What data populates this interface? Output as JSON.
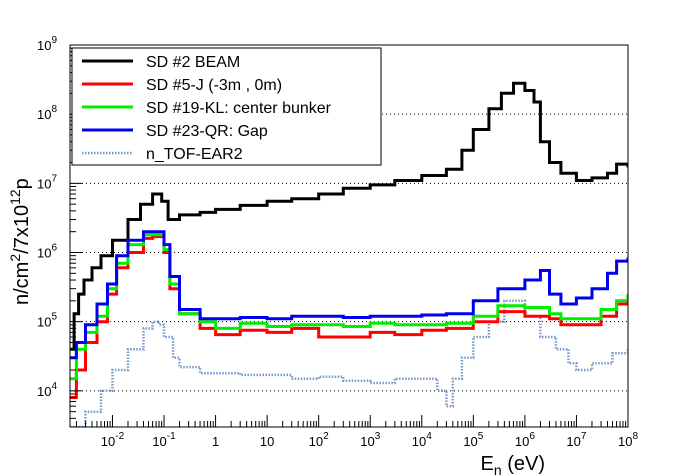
{
  "chart_data": {
    "type": "line",
    "title": "",
    "xlabel": "E_n (eV)",
    "xlabel_parts": {
      "base": "E",
      "sub": "n",
      "unit": " (eV)"
    },
    "ylabel": "n/cm^2/7x10^12p",
    "ylabel_parts": {
      "a": "n/cm",
      "sup1": "2",
      "b": "/7x10",
      "sup2": "12",
      "c": "p"
    },
    "x_scale": "log",
    "y_scale": "log",
    "xlim": [
      0.0015,
      100000000
    ],
    "ylim": [
      3000,
      1000000000
    ],
    "grid": "horizontal dotted at decades",
    "legend_position": "top-left",
    "x_ticks": [
      {
        "mantissa": "10",
        "exp": "-2",
        "value": 0.01
      },
      {
        "mantissa": "10",
        "exp": "-1",
        "value": 0.1
      },
      {
        "mantissa": "1",
        "exp": "",
        "value": 1
      },
      {
        "mantissa": "10",
        "exp": "",
        "value": 10
      },
      {
        "mantissa": "10",
        "exp": "2",
        "value": 100
      },
      {
        "mantissa": "10",
        "exp": "3",
        "value": 1000
      },
      {
        "mantissa": "10",
        "exp": "4",
        "value": 10000
      },
      {
        "mantissa": "10",
        "exp": "5",
        "value": 100000
      },
      {
        "mantissa": "10",
        "exp": "6",
        "value": 1000000
      },
      {
        "mantissa": "10",
        "exp": "7",
        "value": 10000000
      },
      {
        "mantissa": "10",
        "exp": "8",
        "value": 100000000
      }
    ],
    "y_ticks": [
      {
        "mantissa": "10",
        "exp": "4",
        "value": 10000
      },
      {
        "mantissa": "10",
        "exp": "5",
        "value": 100000
      },
      {
        "mantissa": "10",
        "exp": "6",
        "value": 1000000
      },
      {
        "mantissa": "10",
        "exp": "7",
        "value": 10000000
      },
      {
        "mantissa": "10",
        "exp": "8",
        "value": 100000000
      },
      {
        "mantissa": "10",
        "exp": "9",
        "value": 1000000000
      }
    ],
    "series": [
      {
        "name": "SD #2 BEAM",
        "color": "#000000",
        "style": "solid",
        "points": [
          [
            0.0015,
            40000
          ],
          [
            0.0018,
            130000
          ],
          [
            0.0022,
            250000
          ],
          [
            0.0028,
            400000
          ],
          [
            0.004,
            600000
          ],
          [
            0.006,
            900000
          ],
          [
            0.01,
            1500000
          ],
          [
            0.02,
            3000000
          ],
          [
            0.035,
            5000000
          ],
          [
            0.06,
            7000000
          ],
          [
            0.09,
            5500000
          ],
          [
            0.12,
            3000000
          ],
          [
            0.2,
            3500000
          ],
          [
            0.5,
            3800000
          ],
          [
            1,
            4200000
          ],
          [
            3,
            4800000
          ],
          [
            10,
            5500000
          ],
          [
            30,
            6000000
          ],
          [
            100,
            7000000
          ],
          [
            300,
            8500000
          ],
          [
            1000,
            9500000
          ],
          [
            3000,
            11000000
          ],
          [
            10000,
            13000000
          ],
          [
            30000,
            16000000
          ],
          [
            60000,
            30000000
          ],
          [
            100000,
            60000000
          ],
          [
            200000,
            120000000
          ],
          [
            350000,
            200000000
          ],
          [
            600000,
            280000000
          ],
          [
            1000000,
            220000000
          ],
          [
            1500000,
            150000000
          ],
          [
            2000000,
            40000000
          ],
          [
            3000000,
            20000000
          ],
          [
            5000000,
            14000000
          ],
          [
            10000000,
            11000000
          ],
          [
            20000000,
            12000000
          ],
          [
            40000000,
            14000000
          ],
          [
            60000000,
            19000000
          ],
          [
            100000000,
            17000000
          ]
        ]
      },
      {
        "name": "SD #5-J (-3m , 0m)",
        "color": "#ff0000",
        "style": "solid",
        "points": [
          [
            0.0015,
            8000
          ],
          [
            0.002,
            20000
          ],
          [
            0.003,
            50000
          ],
          [
            0.005,
            100000
          ],
          [
            0.008,
            250000
          ],
          [
            0.012,
            600000
          ],
          [
            0.02,
            1000000
          ],
          [
            0.04,
            1600000
          ],
          [
            0.06,
            1700000
          ],
          [
            0.1,
            1000000
          ],
          [
            0.13,
            300000
          ],
          [
            0.2,
            130000
          ],
          [
            0.5,
            80000
          ],
          [
            1,
            65000
          ],
          [
            3,
            75000
          ],
          [
            10,
            70000
          ],
          [
            30,
            80000
          ],
          [
            100,
            60000
          ],
          [
            300,
            60000
          ],
          [
            1000,
            70000
          ],
          [
            3000,
            65000
          ],
          [
            10000,
            75000
          ],
          [
            30000,
            80000
          ],
          [
            100000,
            100000
          ],
          [
            300000,
            140000
          ],
          [
            1000000,
            120000
          ],
          [
            3000000,
            110000
          ],
          [
            5000000,
            90000
          ],
          [
            10000000,
            90000
          ],
          [
            30000000,
            120000
          ],
          [
            60000000,
            180000
          ],
          [
            100000000,
            250000
          ]
        ]
      },
      {
        "name": "SD #19-KL: center bunker",
        "color": "#00ee00",
        "style": "solid",
        "points": [
          [
            0.0015,
            15000
          ],
          [
            0.002,
            40000
          ],
          [
            0.003,
            70000
          ],
          [
            0.005,
            120000
          ],
          [
            0.008,
            300000
          ],
          [
            0.012,
            700000
          ],
          [
            0.02,
            1300000
          ],
          [
            0.04,
            1800000
          ],
          [
            0.06,
            1800000
          ],
          [
            0.1,
            1100000
          ],
          [
            0.13,
            350000
          ],
          [
            0.2,
            130000
          ],
          [
            0.5,
            100000
          ],
          [
            1,
            80000
          ],
          [
            3,
            95000
          ],
          [
            10,
            85000
          ],
          [
            30,
            90000
          ],
          [
            100,
            90000
          ],
          [
            300,
            85000
          ],
          [
            1000,
            95000
          ],
          [
            3000,
            90000
          ],
          [
            10000,
            90000
          ],
          [
            30000,
            95000
          ],
          [
            100000,
            120000
          ],
          [
            300000,
            170000
          ],
          [
            1000000,
            160000
          ],
          [
            3000000,
            130000
          ],
          [
            5000000,
            110000
          ],
          [
            10000000,
            110000
          ],
          [
            30000000,
            150000
          ],
          [
            60000000,
            200000
          ],
          [
            100000000,
            250000
          ]
        ]
      },
      {
        "name": "SD #23-QR: Gap",
        "color": "#0000ee",
        "style": "solid",
        "points": [
          [
            0.0015,
            30000
          ],
          [
            0.002,
            50000
          ],
          [
            0.003,
            90000
          ],
          [
            0.005,
            180000
          ],
          [
            0.008,
            350000
          ],
          [
            0.012,
            900000
          ],
          [
            0.02,
            1500000
          ],
          [
            0.04,
            2000000
          ],
          [
            0.06,
            2000000
          ],
          [
            0.1,
            1300000
          ],
          [
            0.13,
            450000
          ],
          [
            0.2,
            150000
          ],
          [
            0.5,
            110000
          ],
          [
            1,
            110000
          ],
          [
            3,
            115000
          ],
          [
            10,
            110000
          ],
          [
            30,
            120000
          ],
          [
            100,
            120000
          ],
          [
            300,
            115000
          ],
          [
            1000,
            120000
          ],
          [
            3000,
            120000
          ],
          [
            10000,
            125000
          ],
          [
            30000,
            130000
          ],
          [
            100000,
            200000
          ],
          [
            300000,
            300000
          ],
          [
            1000000,
            400000
          ],
          [
            2000000,
            550000
          ],
          [
            3000000,
            250000
          ],
          [
            5000000,
            180000
          ],
          [
            10000000,
            220000
          ],
          [
            20000000,
            300000
          ],
          [
            40000000,
            500000
          ],
          [
            60000000,
            750000
          ],
          [
            100000000,
            850000
          ]
        ]
      },
      {
        "name": "n_TOF-EAR2",
        "color": "#7799cc",
        "style": "dotted",
        "points": [
          [
            0.0015,
            3000
          ],
          [
            0.003,
            5000
          ],
          [
            0.006,
            10000
          ],
          [
            0.01,
            20000
          ],
          [
            0.02,
            40000
          ],
          [
            0.04,
            80000
          ],
          [
            0.06,
            100000
          ],
          [
            0.08,
            90000
          ],
          [
            0.1,
            60000
          ],
          [
            0.15,
            30000
          ],
          [
            0.2,
            22000
          ],
          [
            0.5,
            18000
          ],
          [
            1,
            18000
          ],
          [
            3,
            17000
          ],
          [
            10,
            17000
          ],
          [
            30,
            15000
          ],
          [
            100,
            16000
          ],
          [
            300,
            14000
          ],
          [
            1000,
            13000
          ],
          [
            3000,
            15000
          ],
          [
            10000,
            15000
          ],
          [
            20000,
            10000
          ],
          [
            30000,
            6000
          ],
          [
            40000,
            15000
          ],
          [
            60000,
            30000
          ],
          [
            100000,
            60000
          ],
          [
            200000,
            100000
          ],
          [
            400000,
            200000
          ],
          [
            700000,
            200000
          ],
          [
            1000000,
            120000
          ],
          [
            2000000,
            60000
          ],
          [
            4000000,
            40000
          ],
          [
            7000000,
            25000
          ],
          [
            10000000,
            20000
          ],
          [
            20000000,
            25000
          ],
          [
            50000000,
            35000
          ],
          [
            100000000,
            40000
          ]
        ]
      }
    ]
  }
}
